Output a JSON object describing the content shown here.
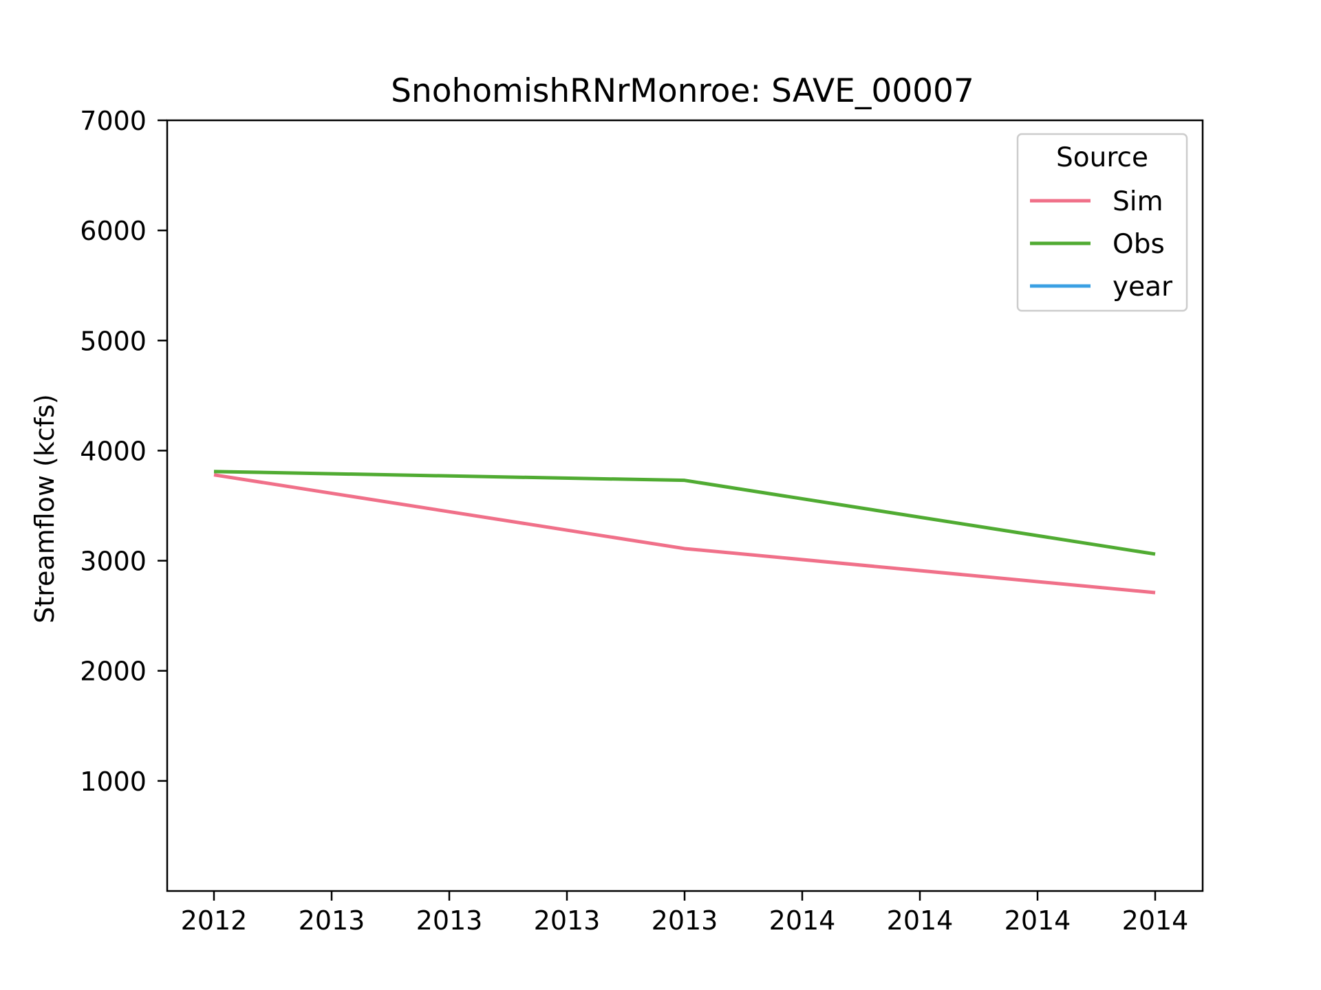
{
  "chart_data": {
    "type": "line",
    "title": "SnohomishRNrMonroe: SAVE_00007",
    "xlabel": "",
    "ylabel": "Streamflow (kcfs)",
    "x_tick_labels": [
      "2012",
      "2013",
      "2013",
      "2013",
      "2013",
      "2014",
      "2014",
      "2014",
      "2014"
    ],
    "y_ticks": [
      1000,
      2000,
      3000,
      4000,
      5000,
      6000,
      7000
    ],
    "ylim": [
      0,
      7000
    ],
    "grid": false,
    "legend": {
      "title": "Source",
      "position": "top-right",
      "entries": [
        "Sim",
        "Obs",
        "year"
      ]
    },
    "series": [
      {
        "name": "Sim",
        "color": "#f07089",
        "x": [
          0,
          4,
          8
        ],
        "values": [
          3780,
          3110,
          2710
        ]
      },
      {
        "name": "Obs",
        "color": "#50ab32",
        "x": [
          0,
          4,
          8
        ],
        "values": [
          3810,
          3730,
          3060
        ]
      },
      {
        "name": "year",
        "color": "#3aa0e3",
        "x": [],
        "values": []
      }
    ]
  }
}
